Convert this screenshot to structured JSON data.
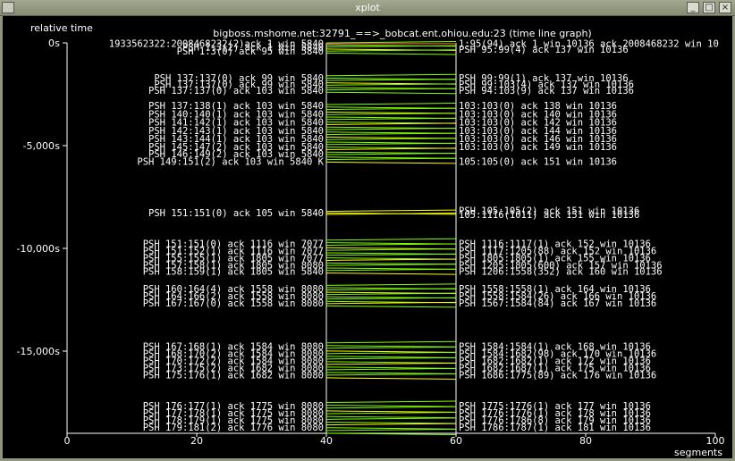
{
  "window": {
    "title": "xplot",
    "btn_min": "_",
    "btn_max": "□",
    "btn_close": "×"
  },
  "plot": {
    "title": "bigboss.mshome.net:32791_==>_bobcat.ent.ohiou.edu:23 (time line graph)",
    "y_label": "relative time",
    "x_label": "segments",
    "y_ticks": [
      {
        "label": "0",
        "unit": "s",
        "value": 0
      },
      {
        "label": "-5,000",
        "unit": "s",
        "value": -5000
      },
      {
        "label": "-10,000",
        "unit": "s",
        "value": -10000
      },
      {
        "label": "-15,000",
        "unit": "s",
        "value": -15000
      }
    ],
    "x_ticks": [
      "0",
      "20",
      "40",
      "60",
      "80",
      "100"
    ],
    "x_values": [
      0,
      20,
      40,
      60,
      80,
      100
    ],
    "ylim": [
      -19000,
      0
    ],
    "xlim": [
      0,
      100
    ],
    "hosts_x": [
      40,
      60
    ],
    "colors": {
      "segment": "#7fff00",
      "ack": "#ffff00",
      "other": "#ff6060",
      "axis": "#ffffff"
    }
  },
  "chart_data": {
    "type": "scatter",
    "title": "bigboss.mshome.net:32791_==>_bobcat.ent.ohiou.edu:23 (time line graph)",
    "xlabel": "segments",
    "ylabel": "relative time",
    "xlim": [
      0,
      100
    ],
    "ylim": [
      -19000,
      0
    ],
    "clusters": [
      {
        "t": [
          0,
          -500
        ],
        "count": 6,
        "color": "#7fff00"
      },
      {
        "t": [
          -1600,
          -2400
        ],
        "count": 8,
        "color": "#7fff00"
      },
      {
        "t": [
          -3000,
          -5800
        ],
        "count": 24,
        "color": "#7fff00"
      },
      {
        "t": [
          -8200,
          -8350
        ],
        "count": 3,
        "color": "#ffff00"
      },
      {
        "t": [
          -9600,
          -11200
        ],
        "count": 14,
        "color": "#7fff00"
      },
      {
        "t": [
          -11800,
          -12800
        ],
        "count": 10,
        "color": "#7fff00"
      },
      {
        "t": [
          -14600,
          -16300
        ],
        "count": 14,
        "color": "#7fff00"
      },
      {
        "t": [
          -17500,
          -19000
        ],
        "count": 12,
        "color": "#7fff00"
      }
    ]
  },
  "labels_left": [
    {
      "t": -30,
      "text": "1933562322:2008468232(2)ack 1 win 5840"
    },
    {
      "t": -200,
      "text": "PSH 1:3(2) ack 1 win 5840"
    },
    {
      "t": -400,
      "text": "PSH 1:3(0) ack 95 win 5840"
    },
    {
      "t": -1700,
      "text": "PSH 137:137(0) ack 99 win 5840"
    },
    {
      "t": -2000,
      "text": "PSH 137:137(0) ack 99 win 5840"
    },
    {
      "t": -2300,
      "text": "PSH 137:137(0) ack 103 win 5840"
    },
    {
      "t": -3050,
      "text": "PSH 137:138(1) ack 103 win 5840"
    },
    {
      "t": -3450,
      "text": "PSH 140:140(1) ack 103 win 5840"
    },
    {
      "t": -3850,
      "text": "PSH 141:142(1) ack 103 win 5840"
    },
    {
      "t": -4250,
      "text": "PSH 142:143(1) ack 103 win 5840"
    },
    {
      "t": -4650,
      "text": "PSH 143:144(1) ack 103 win 5840"
    },
    {
      "t": -5050,
      "text": "PSH 145:147(2) ack 103 win 5840"
    },
    {
      "t": -5400,
      "text": "PSH 146:149(2) ack 103 win 5840"
    },
    {
      "t": -5750,
      "text": "PSH 149:151(2) ack 103 win 5840 K"
    },
    {
      "t": -8250,
      "text": "PSH 151:151(0) ack 105 win 5840"
    },
    {
      "t": -9750,
      "text": "PSH 151:151(0) ack 1116 win 7077"
    },
    {
      "t": -10100,
      "text": "PSH 151:152(1) ack 1116 win 7077"
    },
    {
      "t": -10450,
      "text": "PSH 155:155(1) ack 1805 win 7077"
    },
    {
      "t": -10800,
      "text": "PSH 157:158(1) ack 1805 win 8080"
    },
    {
      "t": -11100,
      "text": "PSH 158:159(1) ack 1805 win 5840"
    },
    {
      "t": -11950,
      "text": "PSH 160:164(4) ack 1558 win 8080"
    },
    {
      "t": -12300,
      "text": "PSH 164:166(2) ack 1558 win 8080"
    },
    {
      "t": -12650,
      "text": "PSH 167:167(0) ack 1558 win 8080"
    },
    {
      "t": -14750,
      "text": "PSH 167:168(1) ack 1584 win 8080"
    },
    {
      "t": -15100,
      "text": "PSH 168:170(2) ack 1584 win 8080"
    },
    {
      "t": -15450,
      "text": "PSH 170:172(2) ack 1584 win 8080"
    },
    {
      "t": -15800,
      "text": "PSH 173:175(2) ack 1682 win 8080"
    },
    {
      "t": -16150,
      "text": "PSH 175:176(1) ack 1682 win 8080"
    },
    {
      "t": -17650,
      "text": "PSH 176:177(1) ack 1775 win 8080"
    },
    {
      "t": -18000,
      "text": "PSH 177:178(1) ack 1775 win 8080"
    },
    {
      "t": -18350,
      "text": "PSH 178:179(1) ack 1775 win 8080"
    },
    {
      "t": -18700,
      "text": "PSH 179:181(2) ack 1776 win 8080"
    }
  ],
  "labels_right": [
    {
      "t": -30,
      "text": "1:95(94) ack 1 win 10136 ack 2008468232 win 10"
    },
    {
      "t": -300,
      "text": "PSH 95:99(4) ack 137 win 10136"
    },
    {
      "t": -1700,
      "text": "PSH 99:99(1) ack 137 win 10136"
    },
    {
      "t": -2000,
      "text": "PSH 99:103(4) ack 137 win 10136"
    },
    {
      "t": -2300,
      "text": "PSH 94:103(9) ack 137 win 10136"
    },
    {
      "t": -3050,
      "text": "103:103(0) ack 138 win 10136"
    },
    {
      "t": -3450,
      "text": "103:103(0) ack 140 win 10136"
    },
    {
      "t": -3850,
      "text": "103:103(0) ack 142 win 10136"
    },
    {
      "t": -4250,
      "text": "103:103(0) ack 144 win 10136"
    },
    {
      "t": -4650,
      "text": "103:103(0) ack 146 win 10136"
    },
    {
      "t": -5050,
      "text": "103:103(0) ack 149 win 10136"
    },
    {
      "t": -5750,
      "text": "105:105(0) ack 151 win 10136"
    },
    {
      "t": -8150,
      "text": "PSH 105:105(2) ack 151 win 10136"
    },
    {
      "t": -8350,
      "text": "105:1116(1011) ack 151 win 10136"
    },
    {
      "t": -9750,
      "text": "PSH 1116:1117(1) ack 152 win 10136"
    },
    {
      "t": -10100,
      "text": "PSH 1117:1205(88) ack 152 win 10136"
    },
    {
      "t": -10450,
      "text": "PSH 1805:1805(1) ack 155 win 10136"
    },
    {
      "t": -10800,
      "text": "PSH 1205:1805(600) ack 157 win 10136"
    },
    {
      "t": -11100,
      "text": "PSH 1206:1558(352) ack 160 win 10136"
    },
    {
      "t": -11950,
      "text": "PSH 1558:1558(1) ack 164 win 10136"
    },
    {
      "t": -12300,
      "text": "PSH 1558:1584(26) ack 166 win 10136"
    },
    {
      "t": -12650,
      "text": "PSH 1567:1584(84) ack 167 win 10136"
    },
    {
      "t": -14750,
      "text": "PSH 1584:1584(1) ack 168 win 10136"
    },
    {
      "t": -15100,
      "text": "PSH 1584:1682(98) ack 170 win 10136"
    },
    {
      "t": -15450,
      "text": "PSH 1682:1682(1) ack 172 win 10136"
    },
    {
      "t": -15800,
      "text": "PSH 1682:1687(1) ack 175 win 10136"
    },
    {
      "t": -16150,
      "text": "PSH 1686:1775(89) ack 176 win 10136"
    },
    {
      "t": -17650,
      "text": "PSH 1775:1776(1) ack 177 win 10136"
    },
    {
      "t": -18000,
      "text": "PSH 1776:1776(1) ack 178 win 10136"
    },
    {
      "t": -18350,
      "text": "PSH 1776:1786(8) ack 179 win 10136"
    },
    {
      "t": -18700,
      "text": "PSH 1786:1787(1) ack 181 win 10136"
    }
  ]
}
